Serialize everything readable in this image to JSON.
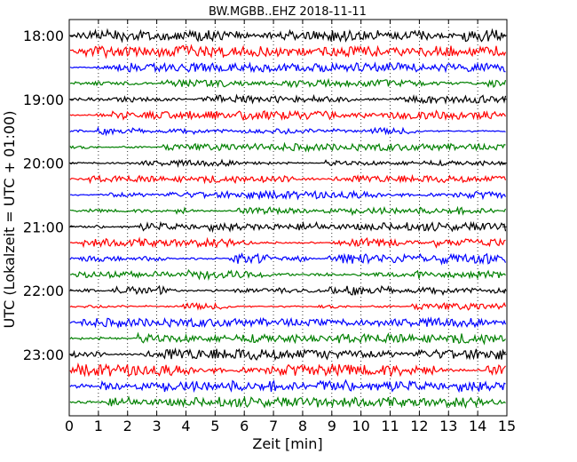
{
  "chart_data": {
    "type": "line",
    "title": "BW.MGBB..EHZ 2018-11-11",
    "xlabel": "Zeit  [min]",
    "ylabel": "UTC (Lokalzeit = UTC + 01:00)",
    "xlim": [
      0,
      15
    ],
    "x_ticks": [
      "0",
      "1",
      "2",
      "3",
      "4",
      "5",
      "6",
      "7",
      "8",
      "9",
      "10",
      "11",
      "12",
      "13",
      "14",
      "15"
    ],
    "y_tick_labels": [
      "18:00",
      "19:00",
      "20:00",
      "21:00",
      "22:00",
      "23:00"
    ],
    "grid": "vertical dotted",
    "trace_start": "18:00",
    "trace_interval_min": 15,
    "trace_color_cycle": [
      "#000000",
      "#ff0000",
      "#0000ff",
      "#008000"
    ],
    "traces": [
      {
        "start": "18:00",
        "amplitude": 0.9
      },
      {
        "start": "18:15",
        "amplitude": 0.8
      },
      {
        "start": "18:30",
        "amplitude": 0.6
      },
      {
        "start": "18:45",
        "amplitude": 0.5
      },
      {
        "start": "19:00",
        "amplitude": 0.6
      },
      {
        "start": "19:15",
        "amplitude": 0.6
      },
      {
        "start": "19:30",
        "amplitude": 0.5
      },
      {
        "start": "19:45",
        "amplitude": 0.5
      },
      {
        "start": "20:00",
        "amplitude": 0.4
      },
      {
        "start": "20:15",
        "amplitude": 0.5
      },
      {
        "start": "20:30",
        "amplitude": 0.5
      },
      {
        "start": "20:45",
        "amplitude": 0.5
      },
      {
        "start": "21:00",
        "amplitude": 0.6
      },
      {
        "start": "21:15",
        "amplitude": 0.6
      },
      {
        "start": "21:30",
        "amplitude": 0.7
      },
      {
        "start": "21:45",
        "amplitude": 0.6
      },
      {
        "start": "22:00",
        "amplitude": 0.7
      },
      {
        "start": "22:15",
        "amplitude": 0.5
      },
      {
        "start": "22:30",
        "amplitude": 0.6
      },
      {
        "start": "22:45",
        "amplitude": 0.7
      },
      {
        "start": "23:00",
        "amplitude": 0.8
      },
      {
        "start": "23:15",
        "amplitude": 0.8
      },
      {
        "start": "23:30",
        "amplitude": 0.8
      },
      {
        "start": "23:45",
        "amplitude": 0.7
      }
    ]
  }
}
